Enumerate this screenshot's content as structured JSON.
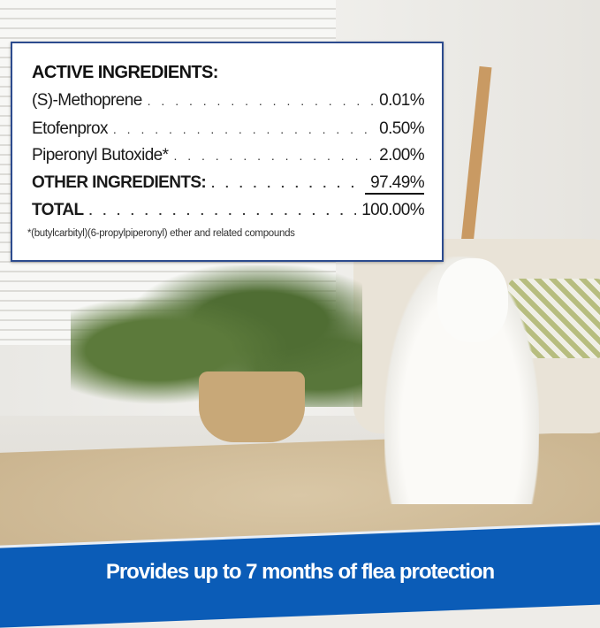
{
  "panel": {
    "heading": "ACTIVE INGREDIENTS:",
    "rows": [
      {
        "label": "(S)-Methoprene",
        "value": "0.01%"
      },
      {
        "label": "Etofenprox",
        "value": "0.50%"
      },
      {
        "label": "Piperonyl Butoxide*",
        "value": "2.00%"
      },
      {
        "label": "OTHER INGREDIENTS:",
        "value": "97.49%"
      },
      {
        "label": "TOTAL",
        "value": "100.00%"
      }
    ],
    "footnote": "*(butylcarbityl)(6-propylpiperonyl) ether and related compounds"
  },
  "banner": {
    "text": "Provides up to 7 months of flea protection",
    "color": "#0b5cb7"
  }
}
